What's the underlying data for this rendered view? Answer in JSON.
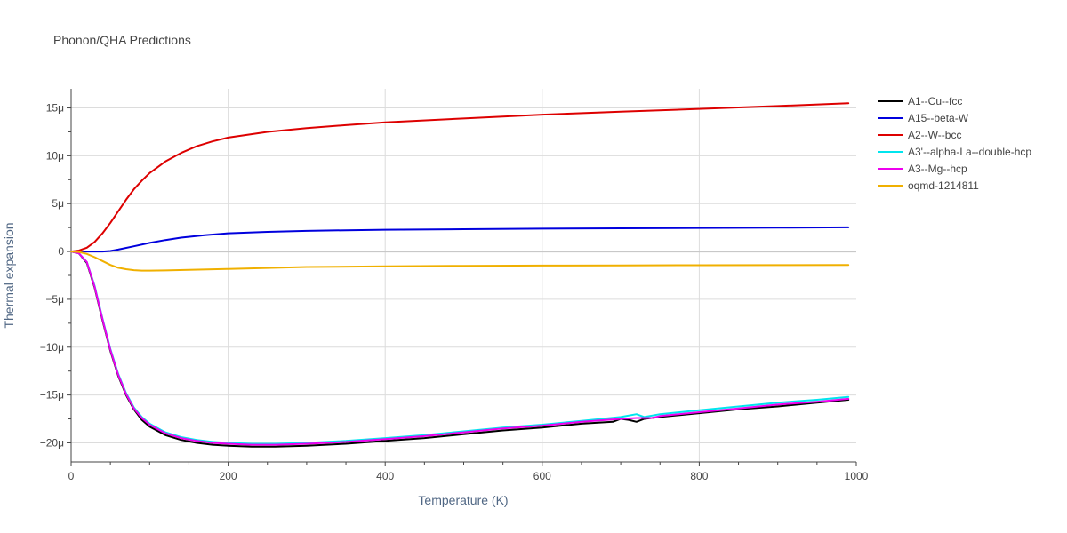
{
  "chart_data": {
    "type": "line",
    "title": "Phonon/QHA Predictions",
    "xlabel": "Temperature (K)",
    "ylabel": "Thermal expansion",
    "xlim": [
      0,
      1000
    ],
    "ylim": [
      -22,
      17
    ],
    "x_ticks": [
      0,
      200,
      400,
      600,
      800,
      1000
    ],
    "x_tick_labels": [
      "0",
      "200",
      "400",
      "600",
      "800",
      "1000"
    ],
    "y_ticks": [
      -20,
      -15,
      -10,
      -5,
      0,
      5,
      10,
      15
    ],
    "y_tick_labels": [
      "−20μ",
      "−15μ",
      "−10μ",
      "−5μ",
      "0",
      "5μ",
      "10μ",
      "15μ"
    ],
    "grid": true,
    "legend_position": "right",
    "series": [
      {
        "name": "A1--Cu--fcc",
        "color": "#000000",
        "x": [
          0,
          10,
          20,
          30,
          40,
          50,
          60,
          70,
          80,
          90,
          100,
          120,
          140,
          160,
          180,
          200,
          230,
          260,
          300,
          350,
          400,
          450,
          500,
          550,
          600,
          650,
          690,
          700,
          710,
          720,
          730,
          750,
          800,
          850,
          900,
          950,
          990
        ],
        "y": [
          0,
          -0.2,
          -1.2,
          -3.8,
          -7.2,
          -10.4,
          -13.0,
          -15.0,
          -16.5,
          -17.6,
          -18.3,
          -19.2,
          -19.7,
          -20.0,
          -20.2,
          -20.3,
          -20.4,
          -20.4,
          -20.3,
          -20.1,
          -19.8,
          -19.5,
          -19.1,
          -18.7,
          -18.4,
          -18.0,
          -17.8,
          -17.5,
          -17.6,
          -17.8,
          -17.5,
          -17.3,
          -16.9,
          -16.5,
          -16.2,
          -15.8,
          -15.5
        ]
      },
      {
        "name": "A15--beta-W",
        "color": "#0000dd",
        "x": [
          0,
          20,
          40,
          50,
          60,
          80,
          100,
          120,
          140,
          170,
          200,
          250,
          300,
          350,
          400,
          500,
          600,
          700,
          800,
          900,
          990
        ],
        "y": [
          0,
          0,
          0,
          0.05,
          0.2,
          0.55,
          0.9,
          1.2,
          1.45,
          1.7,
          1.9,
          2.05,
          2.15,
          2.22,
          2.27,
          2.33,
          2.38,
          2.42,
          2.46,
          2.49,
          2.52
        ]
      },
      {
        "name": "A2--W--bcc",
        "color": "#dd0000",
        "x": [
          0,
          10,
          20,
          30,
          40,
          50,
          60,
          70,
          80,
          90,
          100,
          120,
          140,
          160,
          180,
          200,
          250,
          300,
          350,
          400,
          500,
          600,
          700,
          800,
          900,
          990
        ],
        "y": [
          0,
          0.1,
          0.4,
          1.0,
          1.9,
          3.0,
          4.2,
          5.4,
          6.5,
          7.4,
          8.2,
          9.4,
          10.3,
          11.0,
          11.5,
          11.9,
          12.5,
          12.9,
          13.2,
          13.5,
          13.9,
          14.3,
          14.6,
          14.9,
          15.2,
          15.5
        ]
      },
      {
        "name": "A3'--alpha-La--double-hcp",
        "color": "#00e5ee",
        "x": [
          0,
          10,
          20,
          30,
          40,
          50,
          60,
          70,
          80,
          90,
          100,
          120,
          140,
          160,
          180,
          200,
          230,
          260,
          300,
          350,
          400,
          450,
          500,
          550,
          600,
          650,
          700,
          720,
          730,
          750,
          800,
          850,
          900,
          950,
          990
        ],
        "y": [
          0,
          -0.2,
          -1.1,
          -3.6,
          -7.0,
          -10.2,
          -12.8,
          -14.8,
          -16.3,
          -17.3,
          -18.0,
          -18.9,
          -19.4,
          -19.7,
          -19.9,
          -20.0,
          -20.1,
          -20.1,
          -20.0,
          -19.8,
          -19.5,
          -19.2,
          -18.8,
          -18.4,
          -18.1,
          -17.7,
          -17.3,
          -17.0,
          -17.3,
          -17.0,
          -16.6,
          -16.2,
          -15.8,
          -15.5,
          -15.2
        ]
      },
      {
        "name": "A3--Mg--hcp",
        "color": "#ee00ee",
        "x": [
          0,
          10,
          20,
          30,
          40,
          50,
          60,
          70,
          80,
          90,
          100,
          120,
          140,
          160,
          180,
          200,
          230,
          260,
          300,
          350,
          400,
          450,
          500,
          550,
          600,
          650,
          700,
          720,
          740,
          750,
          800,
          850,
          900,
          950,
          990
        ],
        "y": [
          0,
          -0.2,
          -1.1,
          -3.7,
          -7.1,
          -10.3,
          -12.9,
          -14.9,
          -16.4,
          -17.4,
          -18.1,
          -19.0,
          -19.5,
          -19.8,
          -20.0,
          -20.1,
          -20.2,
          -20.2,
          -20.1,
          -19.9,
          -19.6,
          -19.3,
          -18.9,
          -18.5,
          -18.2,
          -17.8,
          -17.5,
          -17.4,
          -17.4,
          -17.2,
          -16.8,
          -16.4,
          -16.0,
          -15.7,
          -15.4
        ]
      },
      {
        "name": "oqmd-1214811",
        "color": "#f0b000",
        "x": [
          0,
          10,
          20,
          30,
          40,
          50,
          60,
          70,
          80,
          90,
          100,
          120,
          150,
          200,
          250,
          300,
          400,
          500,
          600,
          700,
          800,
          900,
          990
        ],
        "y": [
          0,
          -0.05,
          -0.25,
          -0.6,
          -1.0,
          -1.4,
          -1.7,
          -1.85,
          -1.95,
          -2.0,
          -2.0,
          -1.98,
          -1.92,
          -1.82,
          -1.72,
          -1.62,
          -1.55,
          -1.5,
          -1.47,
          -1.45,
          -1.43,
          -1.42,
          -1.41
        ]
      }
    ]
  }
}
